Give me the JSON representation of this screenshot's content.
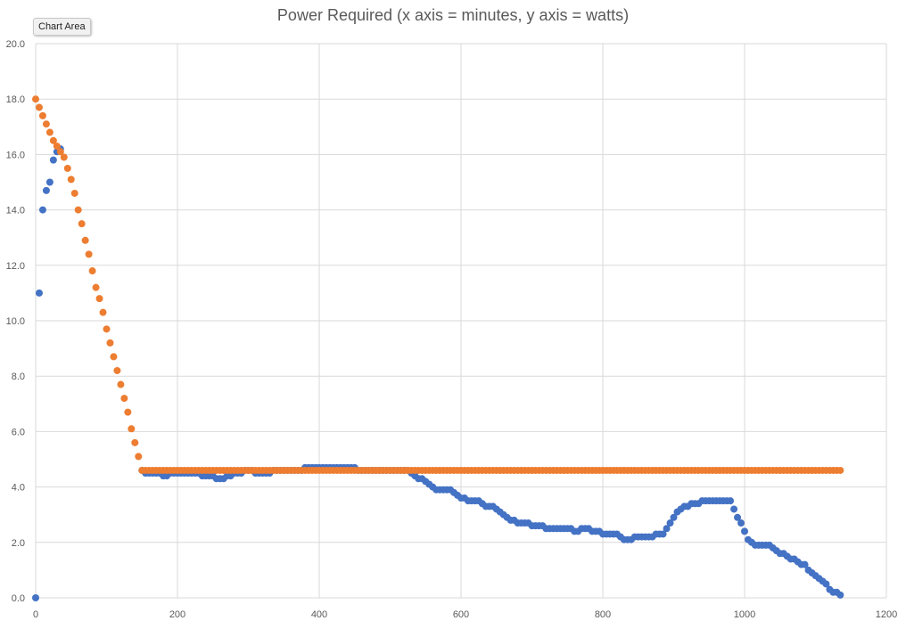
{
  "chart_area_tooltip": "Chart Area",
  "chart_data": {
    "type": "scatter",
    "title": "Power Required (x axis = minutes, y axis = watts)",
    "xlabel": "",
    "ylabel": "",
    "xlim": [
      0,
      1200
    ],
    "ylim": [
      0,
      20
    ],
    "xticks": [
      0,
      200,
      400,
      600,
      800,
      1000,
      1200
    ],
    "xtick_labels": [
      "0",
      "200",
      "400",
      "600",
      "800",
      "1000",
      "1200"
    ],
    "yticks": [
      0,
      2,
      4,
      6,
      8,
      10,
      12,
      14,
      16,
      18,
      20
    ],
    "ytick_labels": [
      "0.0",
      "2.0",
      "4.0",
      "6.0",
      "8.0",
      "10.0",
      "12.0",
      "14.0",
      "16.0",
      "18.0",
      "20.0"
    ],
    "grid": true,
    "legend": "none",
    "series": [
      {
        "color": "#4472c4",
        "points": [
          [
            0,
            0.0
          ],
          [
            5,
            11.0
          ],
          [
            10,
            14.0
          ],
          [
            15,
            14.7
          ],
          [
            20,
            15.0
          ],
          [
            25,
            15.8
          ],
          [
            30,
            16.1
          ],
          [
            35,
            16.2
          ],
          [
            150,
            4.6
          ],
          [
            155,
            4.5
          ],
          [
            160,
            4.5
          ],
          [
            165,
            4.5
          ],
          [
            170,
            4.5
          ],
          [
            175,
            4.5
          ],
          [
            180,
            4.4
          ],
          [
            185,
            4.4
          ],
          [
            190,
            4.5
          ],
          [
            195,
            4.5
          ],
          [
            200,
            4.5
          ],
          [
            205,
            4.5
          ],
          [
            210,
            4.5
          ],
          [
            215,
            4.5
          ],
          [
            220,
            4.5
          ],
          [
            225,
            4.5
          ],
          [
            230,
            4.5
          ],
          [
            235,
            4.4
          ],
          [
            240,
            4.4
          ],
          [
            245,
            4.4
          ],
          [
            250,
            4.4
          ],
          [
            255,
            4.3
          ],
          [
            260,
            4.3
          ],
          [
            265,
            4.3
          ],
          [
            270,
            4.4
          ],
          [
            275,
            4.4
          ],
          [
            280,
            4.5
          ],
          [
            285,
            4.5
          ],
          [
            290,
            4.5
          ],
          [
            295,
            4.6
          ],
          [
            300,
            4.6
          ],
          [
            305,
            4.6
          ],
          [
            310,
            4.5
          ],
          [
            315,
            4.5
          ],
          [
            320,
            4.5
          ],
          [
            325,
            4.5
          ],
          [
            330,
            4.5
          ],
          [
            335,
            4.6
          ],
          [
            340,
            4.6
          ],
          [
            345,
            4.6
          ],
          [
            350,
            4.6
          ],
          [
            355,
            4.6
          ],
          [
            360,
            4.6
          ],
          [
            365,
            4.6
          ],
          [
            370,
            4.6
          ],
          [
            375,
            4.6
          ],
          [
            380,
            4.7
          ],
          [
            385,
            4.7
          ],
          [
            390,
            4.7
          ],
          [
            395,
            4.7
          ],
          [
            400,
            4.7
          ],
          [
            405,
            4.7
          ],
          [
            410,
            4.7
          ],
          [
            415,
            4.7
          ],
          [
            420,
            4.7
          ],
          [
            425,
            4.7
          ],
          [
            430,
            4.7
          ],
          [
            435,
            4.7
          ],
          [
            440,
            4.7
          ],
          [
            445,
            4.7
          ],
          [
            450,
            4.7
          ],
          [
            455,
            4.6
          ],
          [
            460,
            4.6
          ],
          [
            465,
            4.6
          ],
          [
            470,
            4.6
          ],
          [
            475,
            4.6
          ],
          [
            480,
            4.6
          ],
          [
            485,
            4.6
          ],
          [
            490,
            4.6
          ],
          [
            495,
            4.6
          ],
          [
            500,
            4.6
          ],
          [
            505,
            4.6
          ],
          [
            510,
            4.6
          ],
          [
            515,
            4.6
          ],
          [
            520,
            4.6
          ],
          [
            525,
            4.6
          ],
          [
            530,
            4.5
          ],
          [
            535,
            4.4
          ],
          [
            540,
            4.3
          ],
          [
            545,
            4.3
          ],
          [
            550,
            4.2
          ],
          [
            555,
            4.1
          ],
          [
            560,
            4.0
          ],
          [
            565,
            3.9
          ],
          [
            570,
            3.9
          ],
          [
            575,
            3.9
          ],
          [
            580,
            3.9
          ],
          [
            585,
            3.9
          ],
          [
            590,
            3.8
          ],
          [
            595,
            3.7
          ],
          [
            600,
            3.6
          ],
          [
            605,
            3.6
          ],
          [
            610,
            3.5
          ],
          [
            615,
            3.5
          ],
          [
            620,
            3.5
          ],
          [
            625,
            3.5
          ],
          [
            630,
            3.4
          ],
          [
            635,
            3.3
          ],
          [
            640,
            3.3
          ],
          [
            645,
            3.3
          ],
          [
            650,
            3.2
          ],
          [
            655,
            3.1
          ],
          [
            660,
            3.0
          ],
          [
            665,
            2.9
          ],
          [
            670,
            2.8
          ],
          [
            675,
            2.8
          ],
          [
            680,
            2.7
          ],
          [
            685,
            2.7
          ],
          [
            690,
            2.7
          ],
          [
            695,
            2.7
          ],
          [
            700,
            2.6
          ],
          [
            705,
            2.6
          ],
          [
            710,
            2.6
          ],
          [
            715,
            2.6
          ],
          [
            720,
            2.5
          ],
          [
            725,
            2.5
          ],
          [
            730,
            2.5
          ],
          [
            735,
            2.5
          ],
          [
            740,
            2.5
          ],
          [
            745,
            2.5
          ],
          [
            750,
            2.5
          ],
          [
            755,
            2.5
          ],
          [
            760,
            2.4
          ],
          [
            765,
            2.4
          ],
          [
            770,
            2.5
          ],
          [
            775,
            2.5
          ],
          [
            780,
            2.5
          ],
          [
            785,
            2.4
          ],
          [
            790,
            2.4
          ],
          [
            795,
            2.4
          ],
          [
            800,
            2.3
          ],
          [
            805,
            2.3
          ],
          [
            810,
            2.3
          ],
          [
            815,
            2.3
          ],
          [
            820,
            2.3
          ],
          [
            825,
            2.2
          ],
          [
            830,
            2.1
          ],
          [
            835,
            2.1
          ],
          [
            840,
            2.1
          ],
          [
            845,
            2.2
          ],
          [
            850,
            2.2
          ],
          [
            855,
            2.2
          ],
          [
            860,
            2.2
          ],
          [
            865,
            2.2
          ],
          [
            870,
            2.2
          ],
          [
            875,
            2.3
          ],
          [
            880,
            2.3
          ],
          [
            885,
            2.3
          ],
          [
            890,
            2.5
          ],
          [
            895,
            2.7
          ],
          [
            900,
            2.9
          ],
          [
            905,
            3.1
          ],
          [
            910,
            3.2
          ],
          [
            915,
            3.3
          ],
          [
            920,
            3.3
          ],
          [
            925,
            3.4
          ],
          [
            930,
            3.4
          ],
          [
            935,
            3.4
          ],
          [
            940,
            3.5
          ],
          [
            945,
            3.5
          ],
          [
            950,
            3.5
          ],
          [
            955,
            3.5
          ],
          [
            960,
            3.5
          ],
          [
            965,
            3.5
          ],
          [
            970,
            3.5
          ],
          [
            975,
            3.5
          ],
          [
            980,
            3.5
          ],
          [
            985,
            3.2
          ],
          [
            990,
            2.9
          ],
          [
            995,
            2.7
          ],
          [
            1000,
            2.4
          ],
          [
            1005,
            2.1
          ],
          [
            1010,
            2.0
          ],
          [
            1015,
            1.9
          ],
          [
            1020,
            1.9
          ],
          [
            1025,
            1.9
          ],
          [
            1030,
            1.9
          ],
          [
            1035,
            1.9
          ],
          [
            1040,
            1.8
          ],
          [
            1045,
            1.7
          ],
          [
            1050,
            1.6
          ],
          [
            1055,
            1.6
          ],
          [
            1060,
            1.5
          ],
          [
            1065,
            1.4
          ],
          [
            1070,
            1.4
          ],
          [
            1075,
            1.3
          ],
          [
            1080,
            1.2
          ],
          [
            1085,
            1.2
          ],
          [
            1090,
            1.0
          ],
          [
            1095,
            0.9
          ],
          [
            1100,
            0.8
          ],
          [
            1105,
            0.7
          ],
          [
            1110,
            0.6
          ],
          [
            1115,
            0.5
          ],
          [
            1120,
            0.3
          ],
          [
            1125,
            0.2
          ],
          [
            1130,
            0.2
          ],
          [
            1135,
            0.1
          ]
        ]
      },
      {
        "color": "#ed7d31",
        "points": [
          [
            0,
            18.0
          ],
          [
            5,
            17.7
          ],
          [
            10,
            17.4
          ],
          [
            15,
            17.1
          ],
          [
            20,
            16.8
          ],
          [
            25,
            16.5
          ],
          [
            30,
            16.3
          ],
          [
            35,
            16.1
          ],
          [
            40,
            15.9
          ],
          [
            45,
            15.5
          ],
          [
            50,
            15.1
          ],
          [
            55,
            14.6
          ],
          [
            60,
            14.0
          ],
          [
            65,
            13.5
          ],
          [
            70,
            12.9
          ],
          [
            75,
            12.4
          ],
          [
            80,
            11.8
          ],
          [
            85,
            11.2
          ],
          [
            90,
            10.8
          ],
          [
            95,
            10.3
          ],
          [
            100,
            9.7
          ],
          [
            105,
            9.2
          ],
          [
            110,
            8.7
          ],
          [
            115,
            8.2
          ],
          [
            120,
            7.7
          ],
          [
            125,
            7.2
          ],
          [
            130,
            6.7
          ],
          [
            135,
            6.1
          ],
          [
            140,
            5.6
          ],
          [
            145,
            5.1
          ],
          [
            150,
            4.6
          ],
          [
            1135,
            4.6
          ]
        ]
      }
    ]
  }
}
